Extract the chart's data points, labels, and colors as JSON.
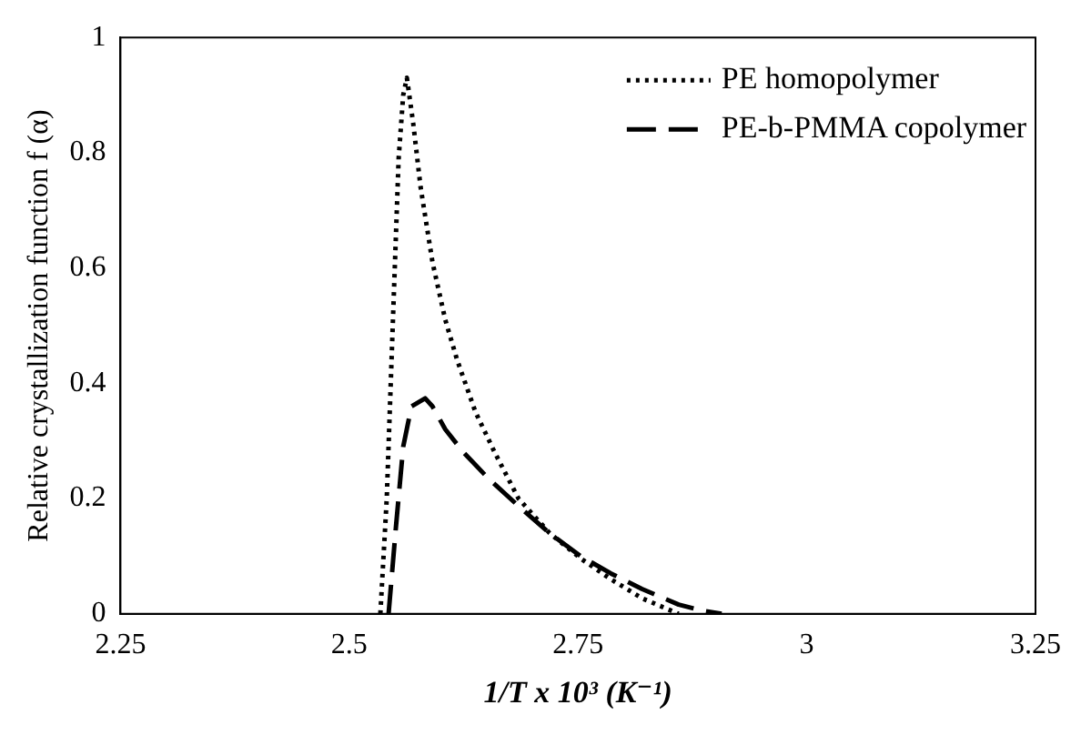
{
  "chart_data": {
    "type": "line",
    "xlabel": "1/T x 10³ (K⁻¹)",
    "ylabel": "Relative crystallization function f (α)",
    "xlim": [
      2.25,
      3.25
    ],
    "xticks": [
      2.25,
      2.5,
      2.75,
      3,
      3.25
    ],
    "ylim": [
      0,
      1
    ],
    "yticks": [
      0,
      0.2,
      0.4,
      0.6,
      0.8,
      1
    ],
    "grid": false,
    "legend": "top right",
    "marker": "none",
    "series": [
      {
        "name": "PE homopolymer",
        "color": "#000000",
        "line_style": "dotted",
        "x": [
          2.534,
          2.541,
          2.548,
          2.554,
          2.559,
          2.563,
          2.57,
          2.578,
          2.591,
          2.605,
          2.618,
          2.638,
          2.659,
          2.685,
          2.719,
          2.753,
          2.786,
          2.82,
          2.86
        ],
        "values": [
          0,
          0.2,
          0.52,
          0.79,
          0.9,
          0.93,
          0.85,
          0.74,
          0.61,
          0.51,
          0.44,
          0.35,
          0.28,
          0.2,
          0.14,
          0.096,
          0.06,
          0.027,
          0
        ]
      },
      {
        "name": "PE-b-PMMA copolymer",
        "color": "#000000",
        "line_style": "dashed",
        "x": [
          2.543,
          2.551,
          2.559,
          2.568,
          2.583,
          2.591,
          2.605,
          2.625,
          2.652,
          2.685,
          2.719,
          2.753,
          2.786,
          2.82,
          2.86,
          2.887,
          2.907
        ],
        "values": [
          0,
          0.15,
          0.29,
          0.36,
          0.374,
          0.36,
          0.32,
          0.28,
          0.235,
          0.187,
          0.14,
          0.1,
          0.07,
          0.043,
          0.016,
          0.005,
          0
        ]
      }
    ]
  }
}
